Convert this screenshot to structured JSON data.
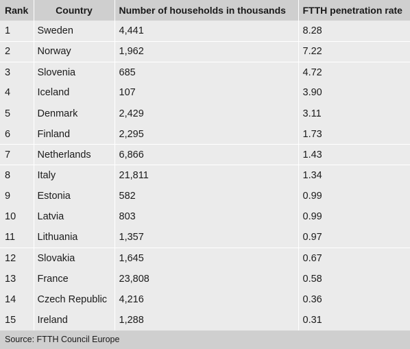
{
  "table": {
    "headers": [
      "Rank",
      "Country",
      "Number of households in thousands",
      "FTTH penetration rate"
    ],
    "rows": [
      {
        "rank": "1",
        "country": "Sweden",
        "households": "4,441",
        "ftth": "8.28"
      },
      {
        "rank": "2",
        "country": "Norway",
        "households": "1,962",
        "ftth": "7.22"
      },
      {
        "rank": "3",
        "country": "Slovenia",
        "households": "685",
        "ftth": "4.72"
      },
      {
        "rank": "4",
        "country": "Iceland",
        "households": "107",
        "ftth": "3.90"
      },
      {
        "rank": "5",
        "country": "Denmark",
        "households": "2,429",
        "ftth": "3.11"
      },
      {
        "rank": "6",
        "country": "Finland",
        "households": "2,295",
        "ftth": "1.73"
      },
      {
        "rank": "7",
        "country": "Netherlands",
        "households": "6,866",
        "ftth": "1.43"
      },
      {
        "rank": "8",
        "country": "Italy",
        "households": "21,811",
        "ftth": "1.34"
      },
      {
        "rank": "9",
        "country": "Estonia",
        "households": "582",
        "ftth": "0.99"
      },
      {
        "rank": "10",
        "country": "Latvia",
        "households": "803",
        "ftth": "0.99"
      },
      {
        "rank": "11",
        "country": "Lithuania",
        "households": "1,357",
        "ftth": "0.97"
      },
      {
        "rank": "12",
        "country": "Slovakia",
        "households": "1,645",
        "ftth": "0.67"
      },
      {
        "rank": "13",
        "country": "France",
        "households": "23,808",
        "ftth": "0.58"
      },
      {
        "rank": "14",
        "country": "Czech Republic",
        "households": "4,216",
        "ftth": "0.36"
      },
      {
        "rank": "15",
        "country": "Ireland",
        "households": "1,288",
        "ftth": "0.31"
      }
    ]
  },
  "source": "Source: FTTH Council Europe",
  "colors": {
    "header_bg": "#cfcfcf",
    "body_bg": "#ebebeb",
    "separator": "#ffffff"
  }
}
